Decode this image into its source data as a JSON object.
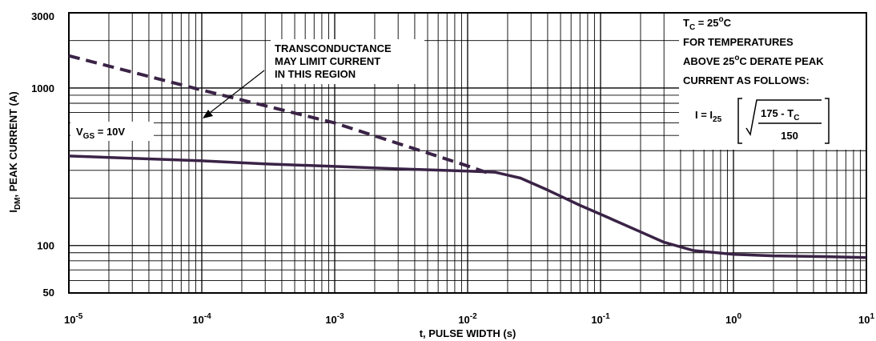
{
  "chart_data": {
    "type": "line",
    "xscale": "log",
    "yscale": "log",
    "xlim": [
      1e-05,
      10
    ],
    "ylim": [
      50,
      3000
    ],
    "grid": true,
    "xlabel": "t, PULSE WIDTH (s)",
    "ylabel": "I_DM, PEAK CURRENT (A)",
    "x_ticks": [
      {
        "base": "10",
        "exp": "-5"
      },
      {
        "base": "10",
        "exp": "-4"
      },
      {
        "base": "10",
        "exp": "-3"
      },
      {
        "base": "10",
        "exp": "-2"
      },
      {
        "base": "10",
        "exp": "-1"
      },
      {
        "base": "10",
        "exp": "0"
      },
      {
        "base": "10",
        "exp": "1"
      }
    ],
    "y_ticks": [
      "3000",
      "1000",
      "100",
      "50"
    ],
    "series": [
      {
        "name": "V_GS = 10V",
        "style": "solid",
        "color": "#3a2346",
        "x": [
          1e-05,
          3e-05,
          0.0001,
          0.0003,
          0.001,
          0.003,
          0.01,
          0.016,
          0.025,
          0.04,
          0.07,
          0.1,
          0.2,
          0.3,
          0.5,
          1,
          2,
          5,
          10
        ],
        "y": [
          370,
          358,
          345,
          330,
          318,
          307,
          297,
          292,
          268,
          225,
          180,
          158,
          122,
          105,
          93,
          88,
          86,
          85,
          84
        ]
      },
      {
        "name": "Transconductance limit",
        "style": "dashed",
        "color": "#3a2346",
        "x": [
          1e-05,
          0.0001,
          0.001,
          0.01,
          0.014
        ],
        "y": [
          1600,
          970,
          600,
          320,
          290
        ]
      }
    ],
    "annotations": {
      "vgs": {
        "main": "V",
        "sub": "GS",
        "rest": " = 10V"
      },
      "transconductance": [
        "TRANSCONDUCTANCE",
        "MAY LIMIT CURRENT",
        "IN THIS REGION"
      ],
      "derate": {
        "tc_main": "T",
        "tc_sub": "C",
        "tc_rest": " = 25",
        "tc_sup": "o",
        "tc_end": "C",
        "line2": "FOR TEMPERATURES",
        "line3_a": "ABOVE 25",
        "line3_sup": "o",
        "line3_b": "C DERATE PEAK",
        "line4": "CURRENT AS FOLLOWS:",
        "formula_lhs_main": "I = I",
        "formula_lhs_sub": "25",
        "numerator_main": "175 - T",
        "numerator_sub": "C",
        "denominator": "150"
      }
    }
  }
}
